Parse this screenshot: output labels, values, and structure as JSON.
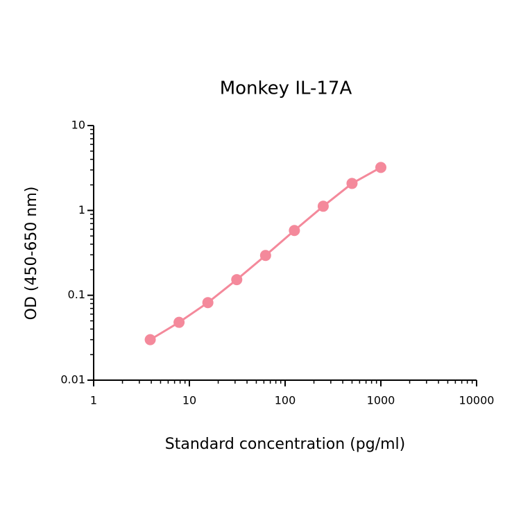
{
  "chart_data": {
    "type": "line",
    "title": "Monkey IL-17A",
    "x_label": "Standard concentration (pg/ml)",
    "y_label": "OD (450-650 nm)",
    "x": [
      3.9,
      7.8,
      15.6,
      31.25,
      62.5,
      125,
      250,
      500,
      1000
    ],
    "series": [
      {
        "name": "Monkey IL-17A",
        "color": "#f4899b",
        "values": [
          0.03,
          0.048,
          0.082,
          0.153,
          0.295,
          0.58,
          1.12,
          2.08,
          3.21
        ]
      }
    ],
    "x_log": true,
    "y_log": true,
    "xlim": [
      1,
      10000
    ],
    "xticks": [
      1,
      10,
      100,
      1000,
      10000
    ],
    "ylim": [
      0.01,
      10
    ],
    "yticks": [
      0.01,
      0.1,
      1,
      10
    ]
  }
}
